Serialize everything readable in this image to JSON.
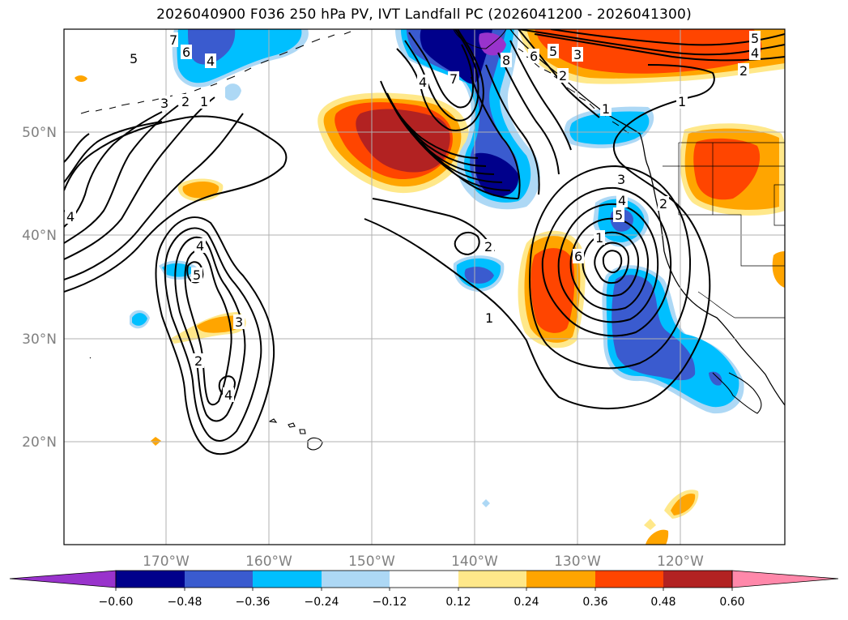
{
  "title": "2026040900 F036 250 hPa PV, IVT Landfall PC (2026041200 - 2026041300)",
  "map": {
    "lon_range": [
      -180,
      -110
    ],
    "lat_range": [
      10,
      60
    ],
    "lat_labels": [
      {
        "lat": 50,
        "label": "50°N"
      },
      {
        "lat": 40,
        "label": "40°N"
      },
      {
        "lat": 30,
        "label": "30°N"
      },
      {
        "lat": 20,
        "label": "20°N"
      }
    ],
    "lon_labels": [
      {
        "lon": -170,
        "label": "170°W"
      },
      {
        "lon": -160,
        "label": "160°W"
      },
      {
        "lon": -150,
        "label": "150°W"
      },
      {
        "lon": -140,
        "label": "140°W"
      },
      {
        "lon": -130,
        "label": "130°W"
      },
      {
        "lon": -120,
        "label": "120°W"
      }
    ],
    "contour_labels": [
      "7",
      "5",
      "6",
      "4",
      "3",
      "2",
      "1",
      "4",
      "4",
      "5",
      "2",
      "3",
      "4",
      "2",
      "4",
      "7",
      "8",
      "6",
      "5",
      "3",
      "2",
      "1",
      "5",
      "4",
      "2",
      "3",
      "2",
      "4",
      "5",
      "6",
      "1",
      "2",
      "1",
      "1"
    ]
  },
  "colorbar": {
    "ticks": [
      "−0.60",
      "−0.48",
      "−0.36",
      "−0.24",
      "−0.12",
      "0.12",
      "0.24",
      "0.36",
      "0.48",
      "0.60"
    ],
    "colors": [
      "#9933cc",
      "#00008b",
      "#3a5bcf",
      "#00bfff",
      "#add8f5",
      "#ffffff",
      "#ffe88a",
      "#ffa500",
      "#ff4500",
      "#b22222",
      "#ff88aa"
    ]
  }
}
